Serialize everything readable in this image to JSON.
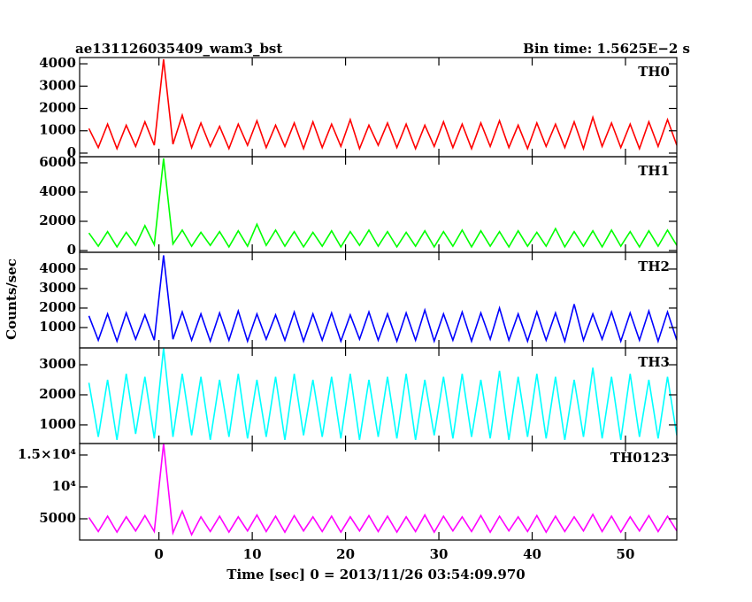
{
  "chart_data": {
    "type": "line",
    "title": "ae131126035409_wam3_bst",
    "subtitle": "Bin time: 1.5625E−2 s",
    "ylabel": "Counts/sec",
    "xlabel": "Time [sec] 0 = 2013/11/26 03:54:09.970",
    "xlim": [
      -8.5,
      55.5
    ],
    "xticks": [
      0,
      10,
      20,
      30,
      40,
      50
    ],
    "x": [
      -7.5,
      -6.5,
      -5.5,
      -4.5,
      -3.5,
      -2.5,
      -1.5,
      -0.5,
      0.5,
      1.5,
      2.5,
      3.5,
      4.5,
      5.5,
      6.5,
      7.5,
      8.5,
      9.5,
      10.5,
      11.5,
      12.5,
      13.5,
      14.5,
      15.5,
      16.5,
      17.5,
      18.5,
      19.5,
      20.5,
      21.5,
      22.5,
      23.5,
      24.5,
      25.5,
      26.5,
      27.5,
      28.5,
      29.5,
      30.5,
      31.5,
      32.5,
      33.5,
      34.5,
      35.5,
      36.5,
      37.5,
      38.5,
      39.5,
      40.5,
      41.5,
      42.5,
      43.5,
      44.5,
      45.5,
      46.5,
      47.5,
      48.5,
      49.5,
      50.5,
      51.5,
      52.5,
      53.5,
      54.5,
      55.5
    ],
    "series": [
      {
        "name": "TH0",
        "color": "#ff0000",
        "ylim": [
          -160,
          4280
        ],
        "yticks": [
          0,
          1000,
          2000,
          3000,
          4000
        ],
        "values": [
          1100,
          250,
          1300,
          200,
          1250,
          300,
          1400,
          350,
          4200,
          400,
          1700,
          250,
          1350,
          300,
          1200,
          200,
          1300,
          350,
          1450,
          250,
          1250,
          300,
          1350,
          200,
          1400,
          250,
          1300,
          300,
          1500,
          200,
          1250,
          350,
          1350,
          250,
          1300,
          200,
          1250,
          300,
          1400,
          250,
          1300,
          200,
          1350,
          300,
          1450,
          250,
          1250,
          200,
          1350,
          300,
          1300,
          250,
          1400,
          200,
          1600,
          300,
          1350,
          250,
          1300,
          200,
          1400,
          300,
          1500,
          350
        ]
      },
      {
        "name": "TH1",
        "color": "#00ff00",
        "ylim": [
          -120,
          6420
        ],
        "yticks": [
          0,
          2000,
          4000,
          6000
        ],
        "values": [
          1200,
          300,
          1300,
          250,
          1250,
          350,
          1700,
          400,
          6300,
          450,
          1400,
          300,
          1250,
          350,
          1300,
          250,
          1350,
          300,
          1800,
          350,
          1400,
          300,
          1300,
          250,
          1250,
          300,
          1350,
          250,
          1300,
          350,
          1400,
          300,
          1300,
          250,
          1250,
          300,
          1350,
          250,
          1300,
          300,
          1400,
          250,
          1350,
          300,
          1300,
          250,
          1350,
          300,
          1250,
          300,
          1500,
          250,
          1300,
          300,
          1350,
          250,
          1400,
          300,
          1300,
          250,
          1350,
          300,
          1400,
          350
        ]
      },
      {
        "name": "TH2",
        "color": "#0000ff",
        "ylim": [
          -45,
          4860
        ],
        "yticks": [
          1000,
          2000,
          3000,
          4000
        ],
        "values": [
          1600,
          350,
          1700,
          300,
          1750,
          400,
          1650,
          350,
          4700,
          400,
          1800,
          350,
          1700,
          300,
          1750,
          350,
          1850,
          300,
          1700,
          400,
          1650,
          350,
          1800,
          300,
          1700,
          350,
          1750,
          300,
          1650,
          400,
          1800,
          350,
          1700,
          300,
          1750,
          350,
          1900,
          300,
          1700,
          350,
          1800,
          300,
          1750,
          400,
          2000,
          350,
          1700,
          300,
          1800,
          350,
          1750,
          300,
          2200,
          350,
          1700,
          400,
          1800,
          300,
          1750,
          350,
          1850,
          300,
          1800,
          350
        ]
      },
      {
        "name": "TH3",
        "color": "#00ffff",
        "ylim": [
          380,
          3560
        ],
        "yticks": [
          1000,
          2000,
          3000
        ],
        "values": [
          2400,
          600,
          2500,
          500,
          2700,
          700,
          2600,
          550,
          3560,
          600,
          2700,
          650,
          2600,
          500,
          2500,
          600,
          2700,
          550,
          2500,
          600,
          2600,
          500,
          2700,
          650,
          2500,
          600,
          2600,
          550,
          2700,
          500,
          2500,
          600,
          2600,
          550,
          2700,
          500,
          2500,
          650,
          2600,
          550,
          2700,
          600,
          2500,
          550,
          2800,
          500,
          2600,
          600,
          2700,
          550,
          2600,
          500,
          2500,
          600,
          2900,
          550,
          2600,
          500,
          2700,
          600,
          2500,
          550,
          2600,
          650
        ]
      },
      {
        "name": "TH0123",
        "color": "#ff00ff",
        "ylim": [
          1670,
          16800
        ],
        "yticks": [
          5000,
          {
            "value": 10000,
            "label": "10⁴"
          },
          {
            "value": 15000,
            "label": "1.5×10⁴"
          }
        ],
        "values": [
          5200,
          3000,
          5400,
          2900,
          5300,
          3100,
          5500,
          3000,
          16800,
          2800,
          6200,
          2500,
          5300,
          3000,
          5400,
          2900,
          5300,
          3100,
          5600,
          3000,
          5400,
          2900,
          5500,
          3100,
          5300,
          3000,
          5400,
          2900,
          5300,
          3100,
          5500,
          3000,
          5400,
          2900,
          5300,
          3000,
          5600,
          2900,
          5400,
          3100,
          5300,
          3000,
          5500,
          2900,
          5400,
          3100,
          5300,
          3000,
          5500,
          2900,
          5400,
          3000,
          5300,
          3100,
          5700,
          3000,
          5400,
          2900,
          5300,
          3100,
          5500,
          3000,
          5400,
          3100
        ]
      }
    ]
  }
}
